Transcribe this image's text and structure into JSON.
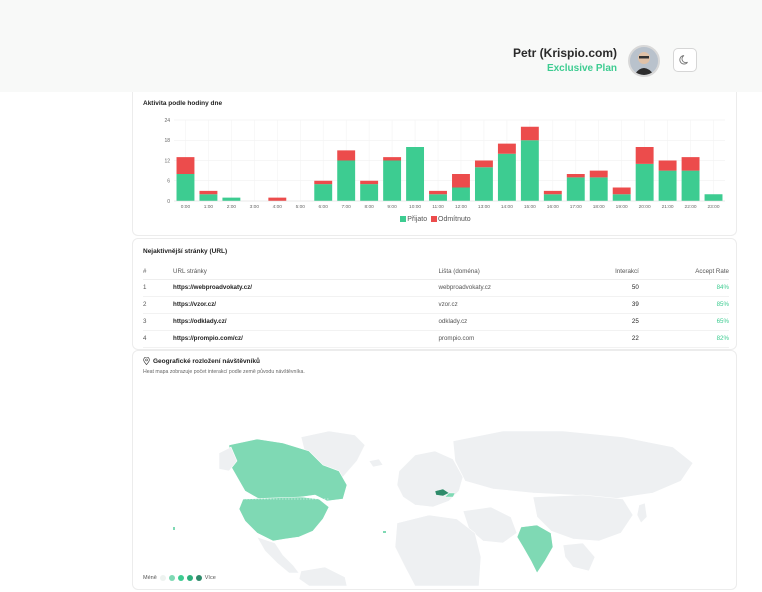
{
  "header": {
    "user_name": "Petr (Krispio.com)",
    "plan": "Exclusive Plan",
    "avatar_icon": "user-avatar",
    "theme_icon": "moon-icon"
  },
  "hourly": {
    "title": "Aktivita podle hodiny dne",
    "legend_accepted": "Přijato",
    "legend_rejected": "Odmítnuto"
  },
  "chart_data": {
    "type": "bar",
    "stacked": true,
    "title": "Aktivita podle hodiny dne",
    "categories": [
      "0:00",
      "1:00",
      "2:00",
      "3:00",
      "4:00",
      "5:00",
      "6:00",
      "7:00",
      "8:00",
      "9:00",
      "10:00",
      "11:00",
      "12:00",
      "13:00",
      "14:00",
      "15:00",
      "16:00",
      "17:00",
      "18:00",
      "19:00",
      "20:00",
      "21:00",
      "22:00",
      "23:00"
    ],
    "series": [
      {
        "name": "Přijato",
        "color": "#3dcc91",
        "values": [
          8,
          2,
          1,
          0,
          0,
          0,
          5,
          12,
          5,
          12,
          16,
          2,
          4,
          10,
          14,
          18,
          2,
          7,
          7,
          2,
          11,
          9,
          9,
          2
        ]
      },
      {
        "name": "Odmítnuto",
        "color": "#ec4c4c",
        "values": [
          5,
          1,
          0,
          0,
          1,
          0,
          1,
          3,
          1,
          1,
          0,
          1,
          4,
          2,
          3,
          4,
          1,
          1,
          2,
          2,
          5,
          3,
          4,
          0
        ]
      }
    ],
    "yticks": [
      "0",
      "6",
      "12",
      "18",
      "24"
    ],
    "ylim": [
      0,
      24
    ],
    "grid": true,
    "legend": "bottom"
  },
  "pages": {
    "title": "Nejaktivnější stránky (URL)",
    "columns": [
      "#",
      "URL stránky",
      "Lišta (doména)",
      "Interakcí",
      "Accept Rate"
    ],
    "rows": [
      {
        "n": "1",
        "url": "https://webproadvokaty.cz/",
        "domain": "webproadvokaty.cz",
        "interactions": "50",
        "rate": "84%"
      },
      {
        "n": "2",
        "url": "https://vzor.cz/",
        "domain": "vzor.cz",
        "interactions": "39",
        "rate": "85%"
      },
      {
        "n": "3",
        "url": "https://odklady.cz/",
        "domain": "odklady.cz",
        "interactions": "25",
        "rate": "65%"
      },
      {
        "n": "4",
        "url": "https://prompio.com/cz/",
        "domain": "prompio.com",
        "interactions": "22",
        "rate": "82%"
      }
    ]
  },
  "geo": {
    "title": "Geografické rozložení návštěvníků",
    "subtitle": "Heat mapa zobrazuje počet interakcí podle země původu návštěvníka.",
    "legend_less": "Méně",
    "legend_more": "Více",
    "pin_icon": "map-pin-icon",
    "highlighted_colors": [
      "#7fd9b4",
      "#2e8a6a"
    ]
  }
}
